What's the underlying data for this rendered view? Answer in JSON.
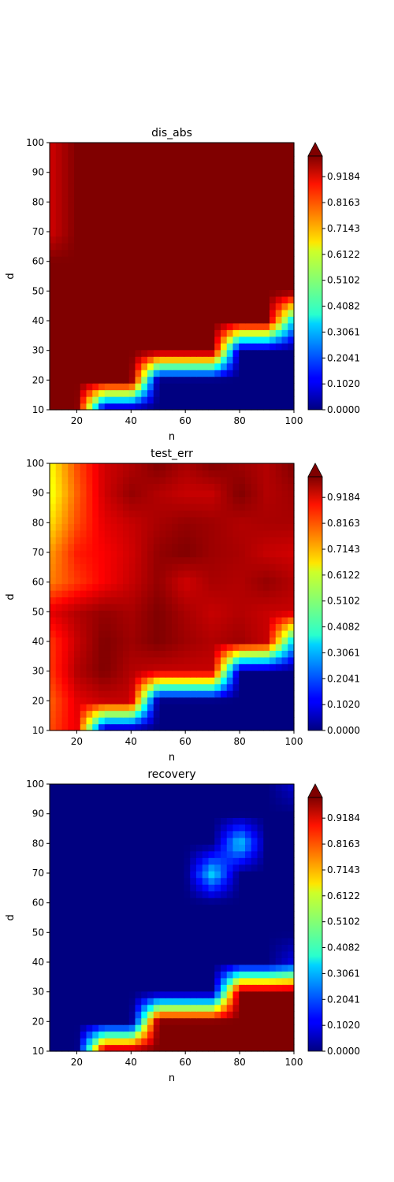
{
  "chart_data": [
    {
      "type": "heatmap",
      "title": "dis_abs",
      "xlabel": "n",
      "ylabel": "d",
      "xlim": [
        10,
        100
      ],
      "ylim": [
        10,
        100
      ],
      "x_ticks": [
        20,
        40,
        60,
        80,
        100
      ],
      "y_ticks": [
        10,
        20,
        30,
        40,
        50,
        60,
        70,
        80,
        90,
        100
      ],
      "colorbar": {
        "colormap": "jet",
        "vmin": 0.0,
        "vmax": 1.0,
        "extend": "max",
        "ticks": [
          "0.0000",
          "0.1020",
          "0.2041",
          "0.3061",
          "0.4082",
          "0.5102",
          "0.6122",
          "0.7143",
          "0.8163",
          "0.9184"
        ]
      },
      "x": [
        10,
        20,
        30,
        40,
        50,
        60,
        70,
        80,
        90,
        100
      ],
      "y": [
        10,
        20,
        30,
        40,
        50,
        60,
        70,
        80,
        90,
        100
      ],
      "values": [
        [
          1.0,
          1.0,
          0.0,
          0.0,
          0.0,
          0.0,
          0.0,
          0.0,
          0.0,
          0.0
        ],
        [
          1.0,
          1.0,
          1.0,
          1.0,
          0.0,
          0.0,
          0.0,
          0.0,
          0.0,
          0.0
        ],
        [
          1.0,
          1.0,
          1.0,
          1.0,
          1.0,
          1.0,
          1.0,
          0.0,
          0.0,
          0.0
        ],
        [
          1.0,
          1.0,
          1.0,
          1.0,
          1.0,
          1.0,
          1.0,
          1.0,
          1.0,
          0.3
        ],
        [
          1.0,
          1.0,
          1.0,
          1.0,
          1.0,
          1.0,
          1.0,
          1.0,
          1.0,
          1.0
        ],
        [
          1.0,
          1.0,
          1.0,
          1.0,
          1.0,
          1.0,
          1.0,
          1.0,
          1.0,
          1.0
        ],
        [
          0.92,
          1.0,
          1.0,
          1.0,
          1.0,
          1.0,
          1.0,
          1.0,
          1.0,
          1.0
        ],
        [
          0.92,
          1.0,
          1.0,
          1.0,
          1.0,
          1.0,
          1.0,
          1.0,
          1.0,
          1.0
        ],
        [
          0.92,
          1.0,
          1.0,
          1.0,
          1.0,
          1.0,
          1.0,
          1.0,
          1.0,
          1.0
        ],
        [
          0.92,
          1.0,
          1.0,
          1.0,
          1.0,
          1.0,
          1.0,
          1.0,
          1.0,
          1.0
        ]
      ]
    },
    {
      "type": "heatmap",
      "title": "test_err",
      "xlabel": "n",
      "ylabel": "d",
      "xlim": [
        10,
        100
      ],
      "ylim": [
        10,
        100
      ],
      "x_ticks": [
        20,
        40,
        60,
        80,
        100
      ],
      "y_ticks": [
        10,
        20,
        30,
        40,
        50,
        60,
        70,
        80,
        90,
        100
      ],
      "colorbar": {
        "colormap": "jet",
        "vmin": 0.0,
        "vmax": 1.0,
        "extend": "max",
        "ticks": [
          "0.0000",
          "0.1020",
          "0.2041",
          "0.3061",
          "0.4082",
          "0.5102",
          "0.6122",
          "0.7143",
          "0.8163",
          "0.9184"
        ]
      },
      "x": [
        10,
        20,
        30,
        40,
        50,
        60,
        70,
        80,
        90,
        100
      ],
      "y": [
        10,
        20,
        30,
        40,
        50,
        60,
        70,
        80,
        90,
        100
      ],
      "values": [
        [
          0.8,
          0.9,
          0.0,
          0.0,
          0.0,
          0.0,
          0.0,
          0.0,
          0.0,
          0.0
        ],
        [
          0.78,
          0.9,
          0.93,
          0.93,
          0.0,
          0.0,
          0.0,
          0.0,
          0.0,
          0.0
        ],
        [
          0.82,
          0.95,
          1.0,
          0.95,
          0.93,
          0.93,
          0.93,
          0.0,
          0.0,
          0.0
        ],
        [
          0.82,
          0.93,
          1.0,
          0.97,
          1.0,
          0.97,
          0.95,
          0.97,
          0.93,
          0.3
        ],
        [
          0.9,
          0.95,
          0.98,
          0.96,
          1.0,
          0.96,
          0.93,
          0.95,
          0.93,
          0.93
        ],
        [
          0.75,
          0.82,
          0.88,
          0.93,
          0.98,
          0.92,
          0.96,
          0.95,
          0.98,
          0.95
        ],
        [
          0.72,
          0.85,
          0.88,
          0.92,
          0.98,
          1.0,
          0.97,
          0.96,
          0.93,
          0.92
        ],
        [
          0.65,
          0.8,
          0.9,
          0.93,
          0.96,
          0.98,
          0.97,
          0.95,
          0.96,
          0.96
        ],
        [
          0.6,
          0.78,
          0.92,
          0.98,
          0.95,
          0.93,
          0.93,
          1.0,
          0.95,
          0.97
        ],
        [
          0.62,
          0.8,
          0.92,
          0.95,
          1.0,
          0.96,
          1.0,
          0.97,
          0.95,
          1.0
        ]
      ]
    },
    {
      "type": "heatmap",
      "title": "recovery",
      "xlabel": "n",
      "ylabel": "d",
      "xlim": [
        10,
        100
      ],
      "ylim": [
        10,
        100
      ],
      "x_ticks": [
        20,
        40,
        60,
        80,
        100
      ],
      "y_ticks": [
        10,
        20,
        30,
        40,
        50,
        60,
        70,
        80,
        90,
        100
      ],
      "colorbar": {
        "colormap": "jet",
        "vmin": 0.0,
        "vmax": 1.0,
        "extend": "max",
        "ticks": [
          "0.0000",
          "0.1020",
          "0.2041",
          "0.3061",
          "0.4082",
          "0.5102",
          "0.6122",
          "0.7143",
          "0.8163",
          "0.9184"
        ]
      },
      "x": [
        10,
        20,
        30,
        40,
        50,
        60,
        70,
        80,
        90,
        100
      ],
      "y": [
        10,
        20,
        30,
        40,
        50,
        60,
        70,
        80,
        90,
        100
      ],
      "values": [
        [
          0.0,
          0.0,
          1.0,
          1.0,
          1.0,
          1.0,
          1.0,
          1.0,
          1.0,
          1.0
        ],
        [
          0.0,
          0.0,
          0.0,
          0.0,
          1.0,
          1.0,
          1.0,
          1.0,
          1.0,
          1.0
        ],
        [
          0.0,
          0.0,
          0.0,
          0.0,
          0.0,
          0.0,
          0.0,
          1.0,
          1.0,
          1.0
        ],
        [
          0.0,
          0.0,
          0.0,
          0.0,
          0.0,
          0.0,
          0.0,
          0.0,
          0.0,
          0.1
        ],
        [
          0.0,
          0.0,
          0.0,
          0.0,
          0.0,
          0.0,
          0.0,
          0.0,
          0.0,
          0.0
        ],
        [
          0.0,
          0.0,
          0.0,
          0.0,
          0.0,
          0.0,
          0.0,
          0.0,
          0.0,
          0.0
        ],
        [
          0.0,
          0.0,
          0.0,
          0.0,
          0.0,
          0.0,
          0.35,
          0.0,
          0.0,
          0.0
        ],
        [
          0.0,
          0.0,
          0.0,
          0.0,
          0.0,
          0.0,
          0.0,
          0.35,
          0.0,
          0.0
        ],
        [
          0.0,
          0.0,
          0.0,
          0.0,
          0.0,
          0.0,
          0.0,
          0.0,
          0.0,
          0.0
        ],
        [
          0.0,
          0.0,
          0.0,
          0.0,
          0.0,
          0.0,
          0.0,
          0.0,
          0.0,
          0.08
        ]
      ]
    }
  ]
}
